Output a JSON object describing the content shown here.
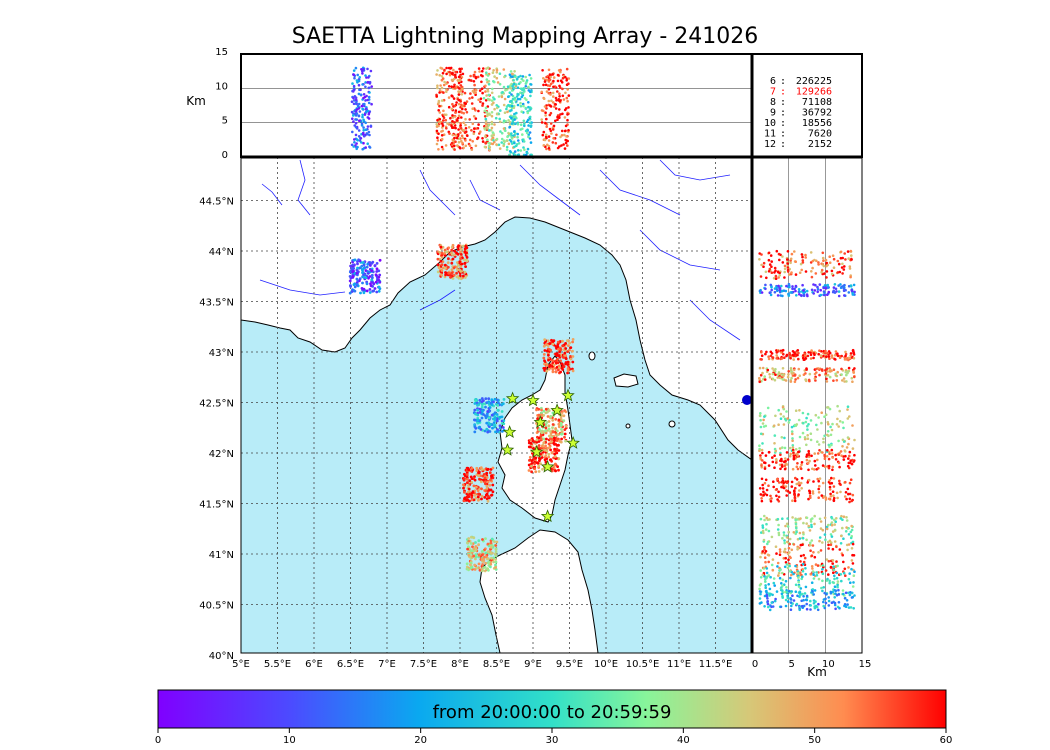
{
  "title": "SAETTA Lightning Mapping Array - 241026",
  "colors": {
    "sea": "#b8ecf8",
    "land": "#ffffff",
    "river": "#2020ff",
    "coast": "#000000",
    "highlight": "#ff0000"
  },
  "chart_data": [
    {
      "type": "scatter",
      "name": "map",
      "x_ticks": [
        "5°E",
        "5.5°E",
        "6°E",
        "6.5°E",
        "7°E",
        "7.5°E",
        "8°E",
        "8.5°E",
        "9°E",
        "9.5°E",
        "10°E",
        "10.5°E",
        "11°E",
        "11.5°E"
      ],
      "y_ticks": [
        "40°N",
        "40.5°N",
        "41°N",
        "41.5°N",
        "42°N",
        "42.5°N",
        "43°N",
        "43.5°N",
        "44°N",
        "44.5°N"
      ],
      "xlim": [
        5,
        12
      ],
      "ylim": [
        40,
        45
      ],
      "grid": true,
      "clusters": [
        {
          "lon": 6.7,
          "lat": 43.8,
          "value": 12
        },
        {
          "lon": 7.9,
          "lat": 43.95,
          "value": 55
        },
        {
          "lon": 8.4,
          "lat": 42.4,
          "value": 20
        },
        {
          "lon": 8.25,
          "lat": 41.7,
          "value": 58
        },
        {
          "lon": 8.3,
          "lat": 41.0,
          "value": 45
        },
        {
          "lon": 9.35,
          "lat": 43.0,
          "value": 58
        },
        {
          "lon": 9.25,
          "lat": 42.3,
          "value": 48
        },
        {
          "lon": 9.15,
          "lat": 42.0,
          "value": 57
        }
      ],
      "stations": [
        {
          "lon": 8.72,
          "lat": 42.57
        },
        {
          "lon": 9.0,
          "lat": 42.55
        },
        {
          "lon": 9.48,
          "lat": 42.6
        },
        {
          "lon": 9.1,
          "lat": 42.33
        },
        {
          "lon": 9.33,
          "lat": 42.45
        },
        {
          "lon": 8.68,
          "lat": 42.23
        },
        {
          "lon": 8.65,
          "lat": 42.05
        },
        {
          "lon": 9.05,
          "lat": 42.03
        },
        {
          "lon": 9.55,
          "lat": 42.12
        },
        {
          "lon": 9.2,
          "lat": 41.88
        },
        {
          "lon": 9.2,
          "lat": 41.38
        }
      ]
    },
    {
      "type": "scatter",
      "name": "altitude-vs-longitude",
      "ylabel": "Km",
      "y_ticks": [
        "0",
        "5",
        "10",
        "15"
      ],
      "ylim": [
        0,
        15
      ],
      "x_ticks": [],
      "grid": true
    },
    {
      "type": "scatter",
      "name": "latitude-vs-altitude",
      "xlabel": "Km",
      "x_ticks": [
        "0",
        "5",
        "10",
        "15"
      ],
      "xlim": [
        0,
        15
      ],
      "grid": true
    },
    {
      "type": "table",
      "name": "altitude-counts",
      "rows": [
        {
          "km": "6",
          "count": "226225",
          "highlight": false
        },
        {
          "km": "7",
          "count": "129266",
          "highlight": true
        },
        {
          "km": "8",
          "count": "71108",
          "highlight": false
        },
        {
          "km": "9",
          "count": "36792",
          "highlight": false
        },
        {
          "km": "10",
          "count": "18556",
          "highlight": false
        },
        {
          "km": "11",
          "count": "7620",
          "highlight": false
        },
        {
          "km": "12",
          "count": "2152",
          "highlight": false
        }
      ]
    },
    {
      "type": "heatmap",
      "name": "colorbar",
      "label": "from 20:00:00 to 20:59:59",
      "range": [
        0,
        60
      ],
      "ticks": [
        "0",
        "10",
        "20",
        "30",
        "40",
        "50",
        "60"
      ]
    }
  ]
}
